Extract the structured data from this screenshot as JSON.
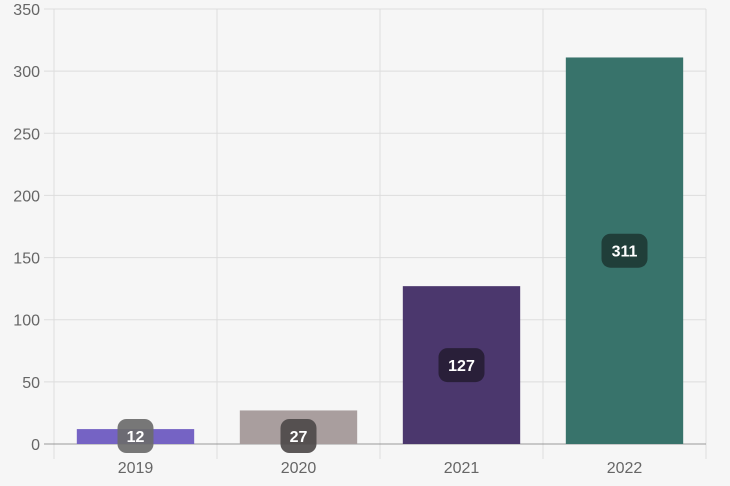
{
  "chart_data": {
    "type": "bar",
    "categories": [
      "2019",
      "2020",
      "2021",
      "2022"
    ],
    "values": [
      12,
      27,
      127,
      311
    ],
    "data_labels": [
      "12",
      "27",
      "127",
      "311"
    ],
    "colors": [
      "#7563c4",
      "#a99e9e",
      "#4b376d",
      "#38736b"
    ],
    "label_bg_colors": [
      "#6b6b6b",
      "#4e4a4a",
      "#261d35",
      "#1e3a35"
    ],
    "ylim": [
      0,
      350
    ],
    "yticks": [
      0,
      50,
      100,
      150,
      200,
      250,
      300,
      350
    ],
    "ytick_labels": [
      "0",
      "50",
      "100",
      "150",
      "200",
      "250",
      "300",
      "350"
    ],
    "grid": true,
    "legend": "none",
    "title": "",
    "xlabel": "",
    "ylabel": ""
  }
}
